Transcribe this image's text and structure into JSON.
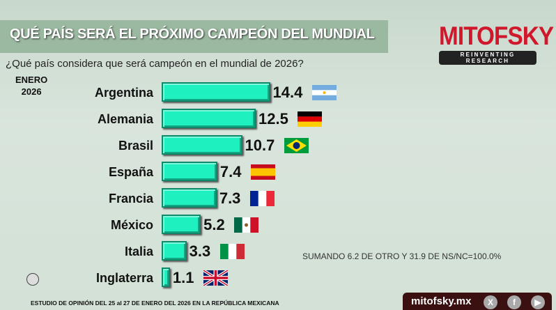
{
  "header": {
    "title": "QUÉ PAÍS SERÁ EL PRÓXIMO CAMPEÓN DEL MUNDIAL",
    "logo": "MITOFSKY",
    "logo_tagline": "REINVENTING RESEARCH"
  },
  "question": "¿Qué país considera que será campeón en el mundial de 2026?",
  "period": {
    "month": "ENERO",
    "year": "2026"
  },
  "chart_data": {
    "type": "bar",
    "orientation": "horizontal",
    "title": "QUÉ PAÍS SERÁ EL PRÓXIMO CAMPEÓN DEL MUNDIAL",
    "categories": [
      "Argentina",
      "Alemania",
      "Brasil",
      "España",
      "Francia",
      "México",
      "Italia",
      "Inglaterra"
    ],
    "values": [
      14.4,
      12.5,
      10.7,
      7.4,
      7.3,
      5.2,
      3.3,
      1.1
    ],
    "value_labels": [
      "14.4",
      "12.5",
      "10.7",
      "7.4",
      "7.3",
      "5.2",
      "3.3",
      "1.1"
    ],
    "flags": [
      "argentina",
      "germany",
      "brazil",
      "spain",
      "france",
      "mexico",
      "italy",
      "uk"
    ],
    "bar_color": "#1ef0c0"
  },
  "note": "SUMANDO 6.2 DE OTRO Y 31.9 DE NS/NC=100.0%",
  "footer": "ESTUDIO DE OPINIÓN DEL 25 al 27 DE ENERO DEL 2026 EN LA REPÚBLICA MEXICANA",
  "social": {
    "site": "mitofsky.mx",
    "x": "X",
    "facebook": "f",
    "youtube": "▶"
  }
}
